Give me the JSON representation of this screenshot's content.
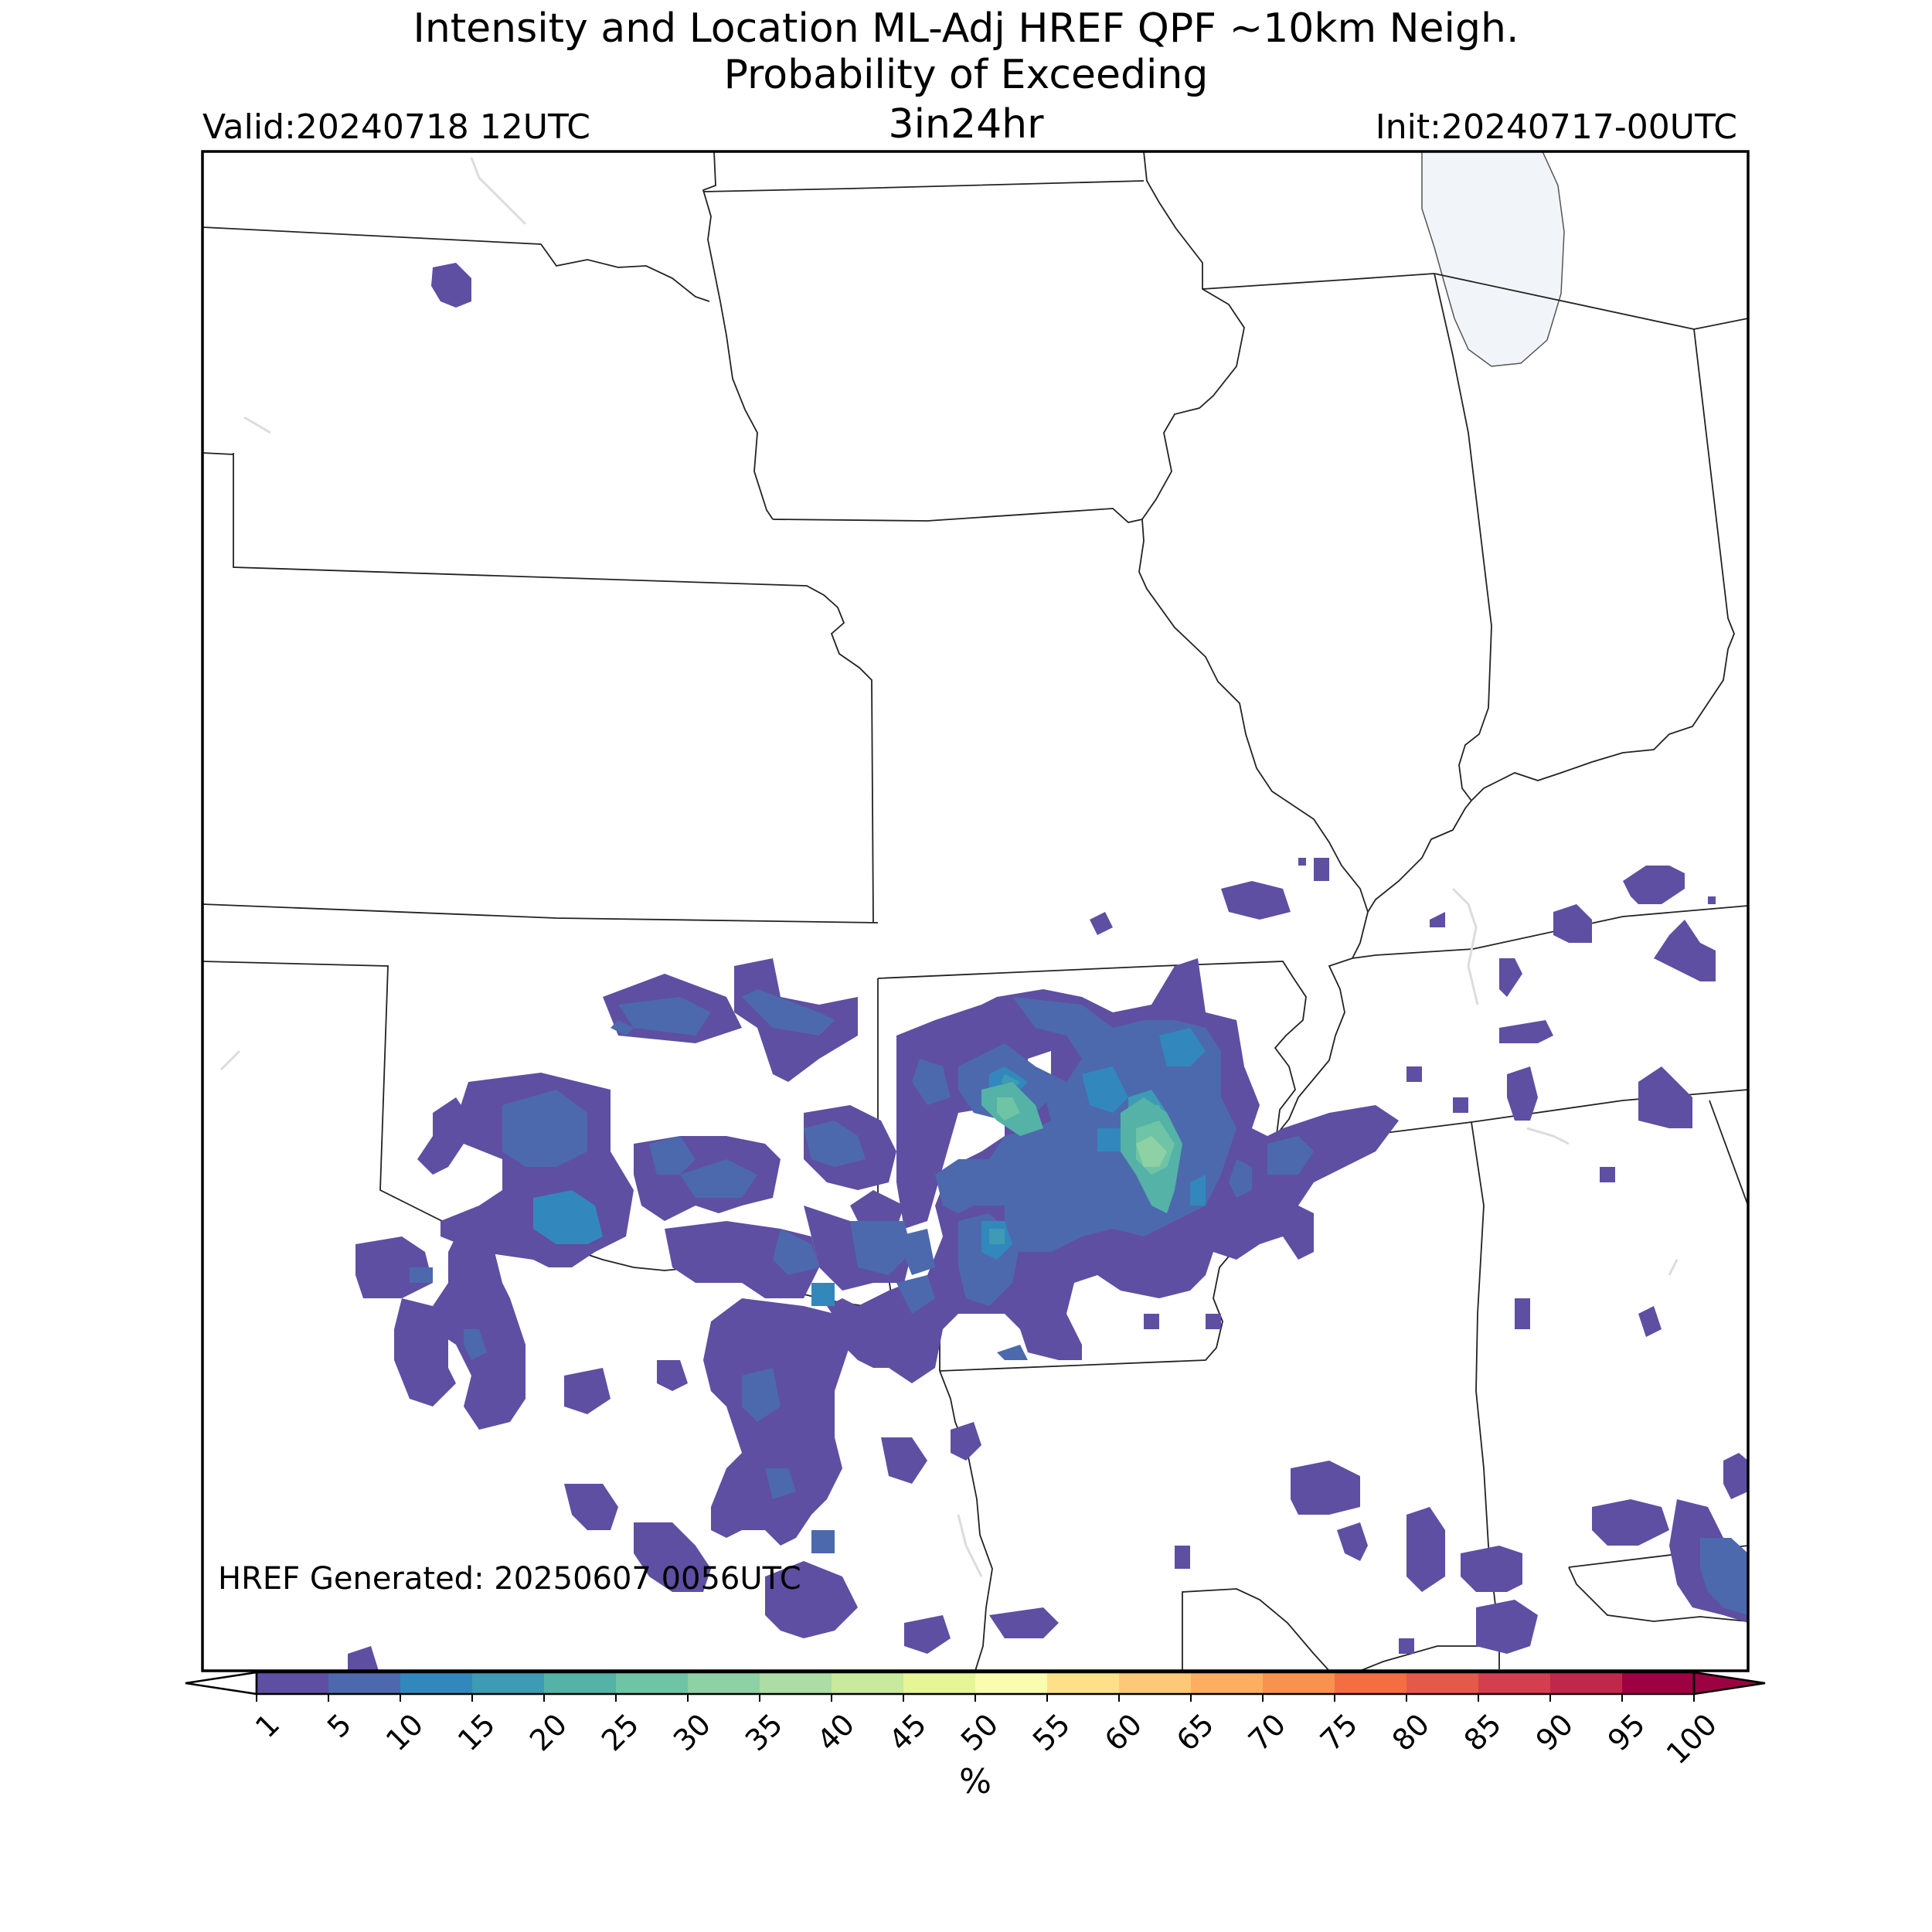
{
  "header": {
    "title_line1": "Intensity and Location ML-Adj HREF QPF ~10km Neigh.",
    "title_line2": "Probability of Exceeding",
    "title_line3": "3in24hr",
    "valid": "Valid:20240718 12UTC",
    "init": "Init:20240717-00UTC"
  },
  "map": {
    "generated_note": "HREF Generated: 20250607 0056UTC",
    "lake_color": "#f1f5fa",
    "field_colors": {
      "p1": "#5e4fa2",
      "p5": "#4d69ad",
      "p15": "#3288bd",
      "p20": "#3d9bb4",
      "p25": "#54b2a6",
      "p30": "#6ec4a4",
      "p35": "#8ed1a4",
      "p40": "#abdda4"
    }
  },
  "colorbar": {
    "label": "%",
    "levels": [
      "1",
      "5",
      "10",
      "15",
      "20",
      "25",
      "30",
      "35",
      "40",
      "45",
      "50",
      "55",
      "60",
      "65",
      "70",
      "75",
      "80",
      "85",
      "90",
      "95",
      "100"
    ],
    "colors": [
      "#5e4fa2",
      "#4d69ad",
      "#3288bd",
      "#3d9bb4",
      "#54b2a6",
      "#6ec4a4",
      "#8ed1a4",
      "#abdda4",
      "#c8e99e",
      "#e6f598",
      "#fafcb0",
      "#fee08b",
      "#fdc978",
      "#fdae61",
      "#f8924e",
      "#f46d43",
      "#e45a4a",
      "#d53e4f",
      "#c1274a",
      "#9e0142"
    ]
  }
}
